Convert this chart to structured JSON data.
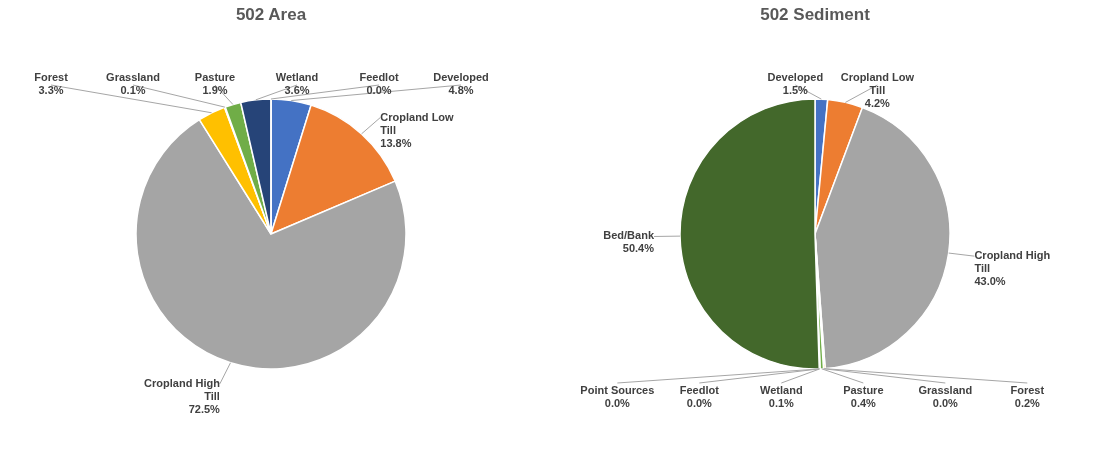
{
  "chart_data": [
    {
      "type": "pie",
      "title": "502 Area",
      "categories": [
        "Developed",
        "Cropland Low Till",
        "Cropland High Till",
        "Forest",
        "Grassland",
        "Pasture",
        "Wetland",
        "Feedlot"
      ],
      "values": [
        4.8,
        13.8,
        72.5,
        3.3,
        0.1,
        1.9,
        3.6,
        0.0
      ],
      "colors": [
        "#4472c4",
        "#ed7d31",
        "#a5a5a5",
        "#ffc000",
        "#5b9bd5",
        "#70ad47",
        "#264478",
        "#9e480e"
      ],
      "value_labels": [
        "4.8%",
        "13.8%",
        "72.5%",
        "3.3%",
        "0.1%",
        "1.9%",
        "3.6%",
        "0.0%"
      ]
    },
    {
      "type": "pie",
      "title": "502 Sediment",
      "categories": [
        "Developed",
        "Cropland Low Till",
        "Cropland High Till",
        "Forest",
        "Grassland",
        "Pasture",
        "Wetland",
        "Feedlot",
        "Point Sources",
        "Bed/Bank"
      ],
      "values": [
        1.5,
        4.2,
        43.0,
        0.2,
        0.0,
        0.4,
        0.1,
        0.0,
        0.0,
        50.4
      ],
      "colors": [
        "#4472c4",
        "#ed7d31",
        "#a5a5a5",
        "#ffc000",
        "#5b9bd5",
        "#70ad47",
        "#264478",
        "#9e480e",
        "#636363",
        "#43682b"
      ],
      "value_labels": [
        "1.5%",
        "4.2%",
        "43.0%",
        "0.2%",
        "0.0%",
        "0.4%",
        "0.1%",
        "0.0%",
        "0.0%",
        "50.4%"
      ]
    }
  ]
}
